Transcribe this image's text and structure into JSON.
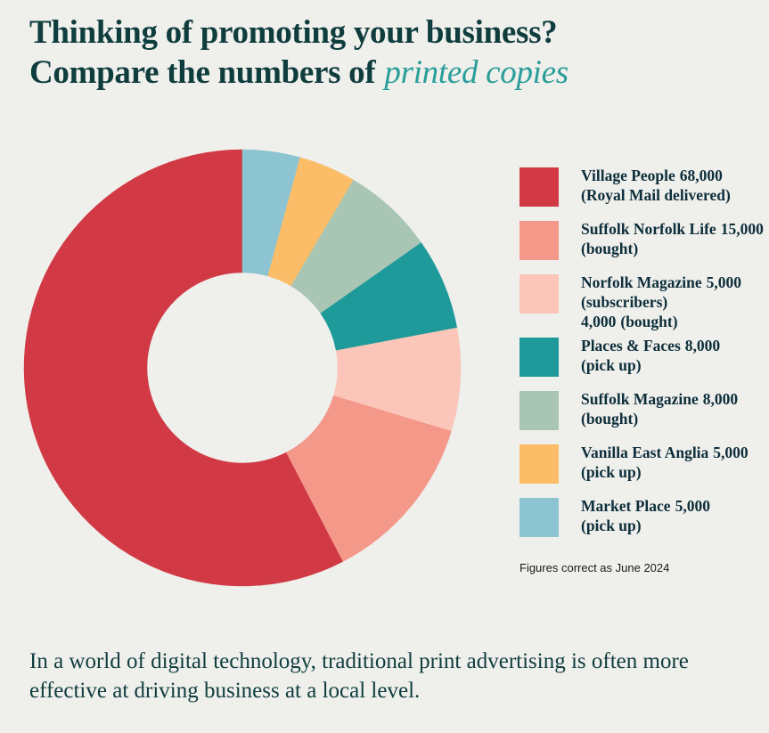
{
  "chart_data": {
    "type": "donut",
    "title": {
      "line1": "Thinking of promoting your business?",
      "line2": "Compare the numbers of",
      "highlight": "printed copies"
    },
    "slices": [
      {
        "name": "Village People",
        "color": "#d13a45",
        "parts": [
          {
            "value": 68000,
            "value_label": "68,000",
            "note": "(Royal Mail delivered)"
          }
        ]
      },
      {
        "name": "Suffolk Norfolk Life",
        "color": "#f4998a",
        "parts": [
          {
            "value": 15000,
            "value_label": "15,000",
            "note": "(bought)"
          }
        ]
      },
      {
        "name": "Norfolk Magazine",
        "color": "#fbc6b9",
        "parts": [
          {
            "value": 5000,
            "value_label": "5,000",
            "note": "(subscribers)"
          },
          {
            "value": 4000,
            "value_label": "4,000",
            "note": "(bought)"
          }
        ]
      },
      {
        "name": "Places & Faces",
        "color": "#1f9a9b",
        "parts": [
          {
            "value": 8000,
            "value_label": "8,000",
            "note": "(pick up)"
          }
        ]
      },
      {
        "name": "Suffolk Magazine",
        "color": "#a9c6b5",
        "parts": [
          {
            "value": 8000,
            "value_label": "8,000",
            "note": "(bought)"
          }
        ]
      },
      {
        "name": "Vanilla East Anglia",
        "color": "#fbbd68",
        "parts": [
          {
            "value": 5000,
            "value_label": "5,000",
            "note": "(pick up)"
          }
        ]
      },
      {
        "name": "Market Place",
        "color": "#8cc5d1",
        "parts": [
          {
            "value": 5000,
            "value_label": "5,000",
            "note": "(pick up)"
          }
        ]
      }
    ],
    "footnote": "Figures correct as June 2024",
    "caption": "In a world of digital technology, traditional print advertising is often more effective at driving business at a local level."
  }
}
